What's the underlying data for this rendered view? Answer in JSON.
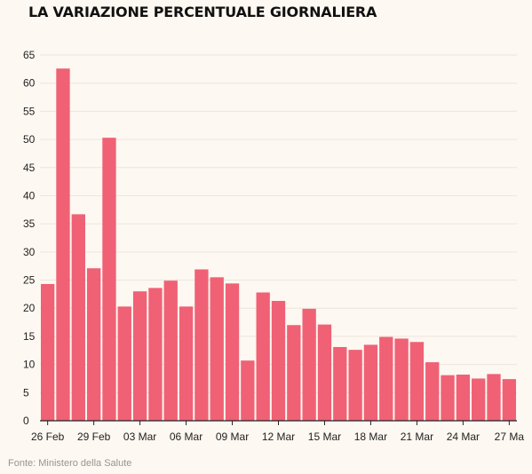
{
  "chart_data": {
    "type": "bar",
    "title": "LA VARIAZIONE PERCENTUALE GIORNALIERA",
    "source": "Fonte: Ministero della Salute",
    "color": "#f06175",
    "ylim": [
      0,
      65
    ],
    "yticks": [
      0,
      5,
      10,
      15,
      20,
      25,
      30,
      35,
      40,
      45,
      50,
      55,
      60,
      65
    ],
    "grid": true,
    "x_tick_labels": [
      "26 Feb",
      "29 Feb",
      "03 Mar",
      "06 Mar",
      "09 Mar",
      "12 Mar",
      "15 Mar",
      "18 Mar",
      "21 Mar",
      "24 Mar",
      "27 Ma"
    ],
    "x_tick_index": [
      0,
      3,
      6,
      9,
      12,
      15,
      18,
      21,
      24,
      27,
      30
    ],
    "values": [
      24.3,
      62.6,
      36.7,
      27.1,
      50.3,
      20.3,
      23.0,
      23.6,
      24.9,
      20.3,
      26.9,
      25.5,
      24.4,
      10.7,
      22.8,
      21.3,
      17.0,
      19.9,
      17.1,
      13.1,
      12.6,
      13.5,
      14.9,
      14.6,
      14.0,
      10.4,
      8.1,
      8.2,
      7.5,
      8.3,
      7.4
    ]
  }
}
